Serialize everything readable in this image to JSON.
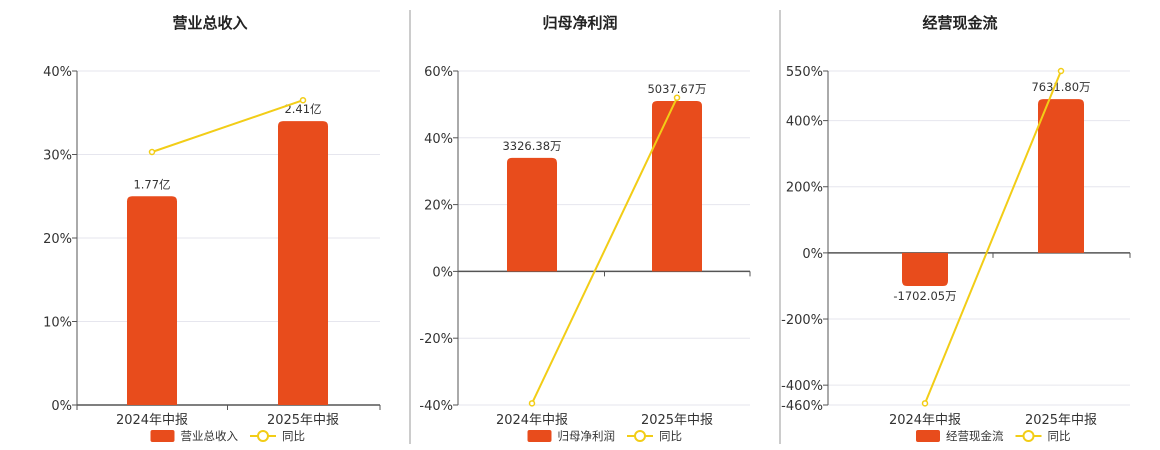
{
  "colors": {
    "bar": "#e84c1c",
    "line": "#f2cd17",
    "grid": "#e6e6ee",
    "axis": "#555555",
    "separator": "#999999"
  },
  "chart_data": [
    {
      "type": "bar",
      "title": "营业总收入",
      "categories": [
        "2024年中报",
        "2025年中报"
      ],
      "ylim": [
        0,
        40
      ],
      "yticks": [
        0,
        10,
        20,
        30,
        40
      ],
      "ytick_labels": [
        "0%",
        "10%",
        "20%",
        "30%",
        "40%"
      ],
      "series": [
        {
          "name": "营业总收入",
          "kind": "bar",
          "values": [
            25,
            34
          ],
          "labels": [
            "1.77亿",
            "2.41亿"
          ]
        },
        {
          "name": "同比",
          "kind": "line",
          "values": [
            30.3,
            36.5
          ]
        }
      ]
    },
    {
      "type": "bar",
      "title": "归母净利润",
      "categories": [
        "2024年中报",
        "2025年中报"
      ],
      "ylim": [
        -40,
        60
      ],
      "yticks": [
        -40,
        -20,
        0,
        20,
        40,
        60
      ],
      "ytick_labels": [
        "-40%",
        "-20%",
        "0%",
        "20%",
        "40%",
        "60%"
      ],
      "series": [
        {
          "name": "归母净利润",
          "kind": "bar",
          "values": [
            34,
            51
          ],
          "labels": [
            "3326.38万",
            "5037.67万"
          ]
        },
        {
          "name": "同比",
          "kind": "line",
          "values": [
            -39.5,
            52
          ]
        }
      ]
    },
    {
      "type": "bar",
      "title": "经营现金流",
      "categories": [
        "2024年中报",
        "2025年中报"
      ],
      "ylim": [
        -460,
        550
      ],
      "yticks": [
        -460,
        -400,
        -200,
        0,
        200,
        400,
        550
      ],
      "ytick_labels": [
        "-460%",
        "-400%",
        "-200%",
        "0%",
        "200%",
        "400%",
        "550%"
      ],
      "series": [
        {
          "name": "经营现金流",
          "kind": "bar",
          "values": [
            -100,
            465
          ],
          "labels": [
            "-1702.05万",
            "7631.80万"
          ]
        },
        {
          "name": "同比",
          "kind": "line",
          "values": [
            -455,
            550
          ]
        }
      ]
    }
  ]
}
